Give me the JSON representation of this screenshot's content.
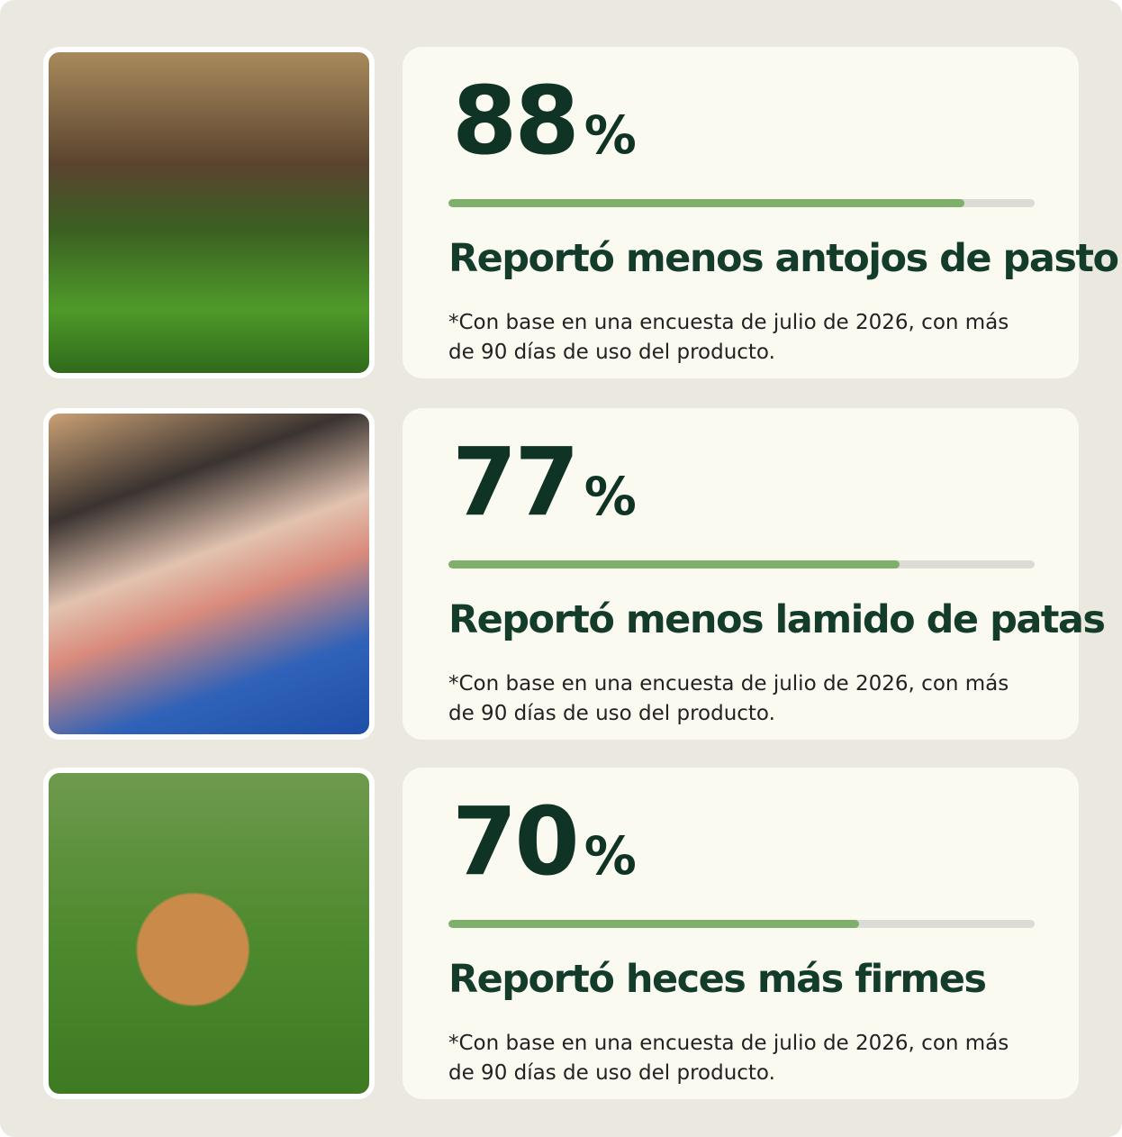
{
  "items": [
    {
      "value": 88,
      "unit": "%",
      "heading": "Reportó menos antojos de pasto",
      "note": "*Con base en una encuesta de julio de 2026, con más de 90 días de uso del producto."
    },
    {
      "value": 77,
      "unit": "%",
      "heading": "Reportó menos lamido de patas",
      "note": "*Con base en una encuesta de julio de 2026, con más de 90 días de uso del producto."
    },
    {
      "value": 70,
      "unit": "%",
      "heading": "Reportó heces más firmes",
      "note": "*Con base en una encuesta de julio de 2026, con más de 90 días de uso del producto."
    }
  ],
  "xlim": [
    0,
    100
  ]
}
